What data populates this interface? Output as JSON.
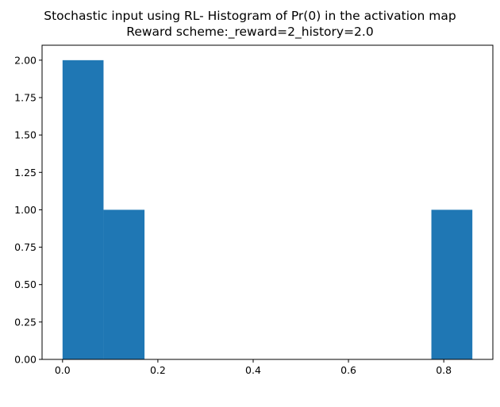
{
  "chart_data": {
    "type": "bar",
    "title_lines": [
      "Stochastic input using RL- Histogram of Pr(0) in the activation map",
      "Reward scheme:_reward=2_history=2.0"
    ],
    "xlabel": "",
    "ylabel": "",
    "bins": [
      {
        "x0": 0.0,
        "x1": 0.086,
        "count": 2
      },
      {
        "x0": 0.086,
        "x1": 0.172,
        "count": 1
      },
      {
        "x0": 0.172,
        "x1": 0.258,
        "count": 0
      },
      {
        "x0": 0.258,
        "x1": 0.344,
        "count": 0
      },
      {
        "x0": 0.344,
        "x1": 0.43,
        "count": 0
      },
      {
        "x0": 0.43,
        "x1": 0.516,
        "count": 0
      },
      {
        "x0": 0.516,
        "x1": 0.602,
        "count": 0
      },
      {
        "x0": 0.602,
        "x1": 0.688,
        "count": 0
      },
      {
        "x0": 0.688,
        "x1": 0.774,
        "count": 0
      },
      {
        "x0": 0.774,
        "x1": 0.86,
        "count": 1
      }
    ],
    "xlim": [
      -0.043,
      0.903
    ],
    "ylim": [
      0,
      2.1
    ],
    "xticks": [
      0.0,
      0.2,
      0.4,
      0.6,
      0.8
    ],
    "xtick_labels": [
      "0.0",
      "0.2",
      "0.4",
      "0.6",
      "0.8"
    ],
    "yticks": [
      0.0,
      0.25,
      0.5,
      0.75,
      1.0,
      1.25,
      1.5,
      1.75,
      2.0
    ],
    "ytick_labels": [
      "0.00",
      "0.25",
      "0.50",
      "0.75",
      "1.00",
      "1.25",
      "1.50",
      "1.75",
      "2.00"
    ],
    "grid": false,
    "colors": {
      "bar": "#1f77b4",
      "axis": "#000000"
    }
  }
}
